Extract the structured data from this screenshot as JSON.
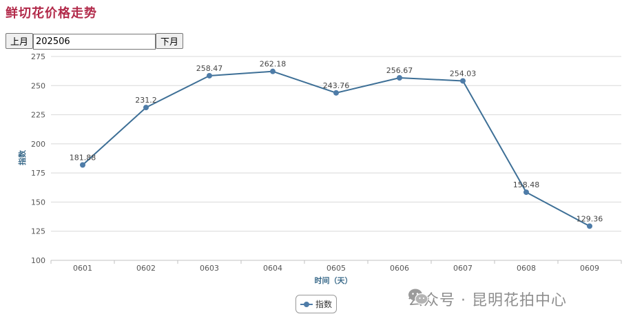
{
  "title": "鲜切花价格走势",
  "controls": {
    "prev_label": "上月",
    "month_value": "202506",
    "next_label": "下月"
  },
  "colors": {
    "line": "#3d6f96",
    "marker": "#4e7ca8",
    "grid": "#d8d8d8",
    "title": "#b22a4a"
  },
  "chart_data": {
    "type": "line",
    "title": "",
    "xlabel": "时间（天）",
    "ylabel": "指数",
    "categories": [
      "0601",
      "0602",
      "0603",
      "0604",
      "0605",
      "0606",
      "0607",
      "0608",
      "0609"
    ],
    "series": [
      {
        "name": "指数",
        "values": [
          181.88,
          231.2,
          258.47,
          262.18,
          243.76,
          256.67,
          254.03,
          158.48,
          129.36
        ]
      }
    ],
    "data_labels": [
      "181.88",
      "231.2",
      "258.47",
      "262.18",
      "243.76",
      "256.67",
      "254.03",
      "158.48",
      "129.36"
    ],
    "ylim": [
      100,
      275
    ],
    "yticks": [
      "100",
      "125",
      "150",
      "175",
      "200",
      "225",
      "250",
      "275"
    ],
    "grid": true,
    "legend": "bottom-center"
  },
  "watermark": {
    "icon": "wechat-icon",
    "text": "公众号 · 昆明花拍中心"
  }
}
